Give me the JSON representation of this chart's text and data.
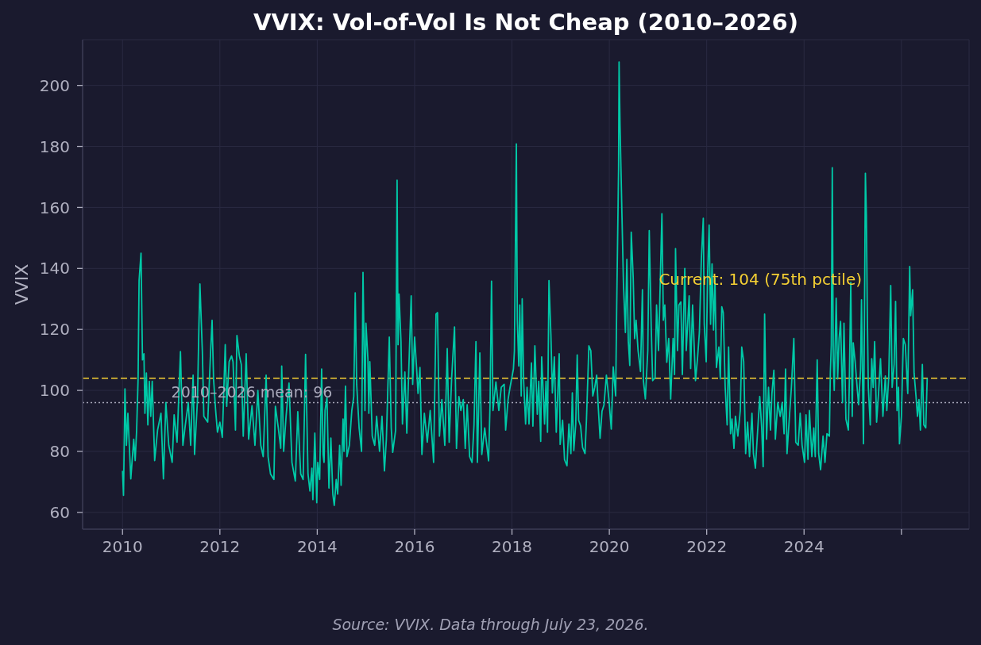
{
  "chart_data": {
    "type": "line",
    "title": "VVIX: Vol-of-Vol Is Not Cheap (2010–2026)",
    "ylabel": "VVIX",
    "x": [
      2010.0,
      2010.02,
      2010.05,
      2010.08,
      2010.11,
      2010.17,
      2010.23,
      2010.26,
      2010.29,
      2010.32,
      2010.34,
      2010.38,
      2010.41,
      2010.44,
      2010.46,
      2010.49,
      2010.52,
      2010.55,
      2010.58,
      2010.61,
      2010.66,
      2010.72,
      2010.79,
      2010.84,
      2010.89,
      2010.95,
      2011.02,
      2011.06,
      2011.12,
      2011.19,
      2011.24,
      2011.29,
      2011.35,
      2011.4,
      2011.45,
      2011.48,
      2011.54,
      2011.57,
      2011.59,
      2011.64,
      2011.67,
      2011.75,
      2011.81,
      2011.84,
      2011.87,
      2011.91,
      2011.95,
      2012.0,
      2012.05,
      2012.11,
      2012.14,
      2012.19,
      2012.24,
      2012.27,
      2012.32,
      2012.35,
      2012.4,
      2012.44,
      2012.48,
      2012.54,
      2012.59,
      2012.66,
      2012.72,
      2012.78,
      2012.84,
      2012.89,
      2012.95,
      2012.99,
      2013.04,
      2013.11,
      2013.14,
      2013.2,
      2013.25,
      2013.27,
      2013.31,
      2013.36,
      2013.42,
      2013.48,
      2013.55,
      2013.6,
      2013.66,
      2013.71,
      2013.76,
      2013.81,
      2013.85,
      2013.89,
      2013.91,
      2013.95,
      2013.99,
      2014.01,
      2014.05,
      2014.09,
      2014.12,
      2014.14,
      2014.16,
      2014.2,
      2014.24,
      2014.28,
      2014.32,
      2014.35,
      2014.39,
      2014.42,
      2014.46,
      2014.49,
      2014.53,
      2014.55,
      2014.58,
      2014.61,
      2014.66,
      2014.71,
      2014.75,
      2014.78,
      2014.81,
      2014.86,
      2014.91,
      2014.94,
      2014.98,
      2015.0,
      2015.04,
      2015.06,
      2015.08,
      2015.13,
      2015.18,
      2015.22,
      2015.28,
      2015.33,
      2015.38,
      2015.42,
      2015.48,
      2015.52,
      2015.55,
      2015.61,
      2015.64,
      2015.66,
      2015.68,
      2015.72,
      2015.75,
      2015.8,
      2015.84,
      2015.88,
      2015.93,
      2015.96,
      2016.0,
      2016.04,
      2016.07,
      2016.11,
      2016.15,
      2016.2,
      2016.26,
      2016.32,
      2016.39,
      2016.44,
      2016.47,
      2016.51,
      2016.56,
      2016.62,
      2016.67,
      2016.71,
      2016.76,
      2016.82,
      2016.86,
      2016.91,
      2016.95,
      2017.0,
      2017.04,
      2017.08,
      2017.13,
      2017.18,
      2017.22,
      2017.26,
      2017.29,
      2017.34,
      2017.38,
      2017.44,
      2017.52,
      2017.55,
      2017.58,
      2017.61,
      2017.67,
      2017.73,
      2017.78,
      2017.84,
      2017.87,
      2017.92,
      2017.96,
      2018.03,
      2018.05,
      2018.09,
      2018.11,
      2018.14,
      2018.16,
      2018.19,
      2018.21,
      2018.24,
      2018.28,
      2018.31,
      2018.35,
      2018.4,
      2018.43,
      2018.47,
      2018.52,
      2018.55,
      2018.59,
      2018.61,
      2018.67,
      2018.7,
      2018.73,
      2018.76,
      2018.8,
      2018.83,
      2018.87,
      2018.91,
      2018.94,
      2018.97,
      2018.99,
      2019.04,
      2019.08,
      2019.13,
      2019.17,
      2019.21,
      2019.24,
      2019.27,
      2019.31,
      2019.34,
      2019.37,
      2019.41,
      2019.45,
      2019.5,
      2019.53,
      2019.58,
      2019.62,
      2019.66,
      2019.7,
      2019.74,
      2019.77,
      2019.81,
      2019.85,
      2019.89,
      2019.94,
      2019.99,
      2020.04,
      2020.08,
      2020.13,
      2020.15,
      2020.19,
      2020.2,
      2020.22,
      2020.24,
      2020.26,
      2020.29,
      2020.33,
      2020.36,
      2020.39,
      2020.42,
      2020.45,
      2020.49,
      2020.52,
      2020.55,
      2020.59,
      2020.64,
      2020.68,
      2020.7,
      2020.74,
      2020.79,
      2020.82,
      2020.86,
      2020.89,
      2020.94,
      2020.97,
      2021.01,
      2021.03,
      2021.08,
      2021.11,
      2021.14,
      2021.18,
      2021.22,
      2021.26,
      2021.31,
      2021.34,
      2021.36,
      2021.4,
      2021.43,
      2021.47,
      2021.5,
      2021.55,
      2021.58,
      2021.64,
      2021.67,
      2021.71,
      2021.77,
      2021.81,
      2021.85,
      2021.89,
      2021.93,
      2021.95,
      2021.99,
      2022.02,
      2022.05,
      2022.08,
      2022.11,
      2022.14,
      2022.17,
      2022.2,
      2022.25,
      2022.28,
      2022.31,
      2022.34,
      2022.38,
      2022.42,
      2022.45,
      2022.49,
      2022.52,
      2022.56,
      2022.59,
      2022.64,
      2022.69,
      2022.72,
      2022.76,
      2022.8,
      2022.84,
      2022.88,
      2022.93,
      2022.96,
      2023.0,
      2023.04,
      2023.09,
      2023.13,
      2023.16,
      2023.19,
      2023.23,
      2023.27,
      2023.31,
      2023.34,
      2023.38,
      2023.41,
      2023.46,
      2023.51,
      2023.55,
      2023.59,
      2023.62,
      2023.65,
      2023.7,
      2023.74,
      2023.79,
      2023.83,
      2023.88,
      2023.92,
      2023.96,
      2024.01,
      2024.04,
      2024.08,
      2024.11,
      2024.16,
      2024.2,
      2024.23,
      2024.27,
      2024.3,
      2024.34,
      2024.39,
      2024.43,
      2024.47,
      2024.52,
      2024.54,
      2024.56,
      2024.58,
      2024.6,
      2024.62,
      2024.66,
      2024.69,
      2024.72,
      2024.75,
      2024.79,
      2024.82,
      2024.86,
      2024.91,
      2024.93,
      2024.96,
      2024.99,
      2025.01,
      2025.05,
      2025.09,
      2025.12,
      2025.16,
      2025.18,
      2025.22,
      2025.24,
      2025.26,
      2025.28,
      2025.3,
      2025.32,
      2025.36,
      2025.39,
      2025.42,
      2025.45,
      2025.49,
      2025.53,
      2025.57,
      2025.62,
      2025.67,
      2025.7,
      2025.74,
      2025.78,
      2025.81,
      2025.85,
      2025.88,
      2025.91,
      2025.94,
      2025.96,
      2026.0,
      2026.04,
      2026.08,
      2026.13,
      2026.17,
      2026.19,
      2026.23,
      2026.26,
      2026.3,
      2026.33,
      2026.36,
      2026.39,
      2026.43,
      2026.46,
      2026.5,
      2026.53
    ],
    "series": [
      {
        "color": "#00c9a7",
        "values": [
          73.6,
          65.6,
          100.5,
          82,
          92.5,
          71,
          84,
          77,
          87,
          104,
          136,
          145,
          110,
          112,
          92.5,
          105.7,
          88.7,
          103,
          91.5,
          103,
          77,
          87,
          92.5,
          71,
          96,
          82,
          76.4,
          92,
          83,
          112.7,
          82,
          88.7,
          96,
          82,
          105,
          79,
          97,
          121.7,
          134.9,
          112.7,
          91.5,
          89.6,
          113,
          123,
          103.8,
          94,
          86.3,
          89.6,
          84.6,
          115,
          94.8,
          109.4,
          111.3,
          109.4,
          87,
          118,
          111.3,
          108.5,
          85,
          112,
          84,
          95,
          82,
          100,
          82,
          78.3,
          105,
          78.3,
          72.6,
          70.8,
          94.8,
          87.7,
          81,
          108,
          80,
          91.5,
          102.4,
          76.4,
          70.3,
          93,
          72.6,
          70.8,
          111.8,
          72.6,
          67,
          74.5,
          64.2,
          86,
          63.2,
          76.4,
          70.8,
          107,
          79,
          76.4,
          93.4,
          97.6,
          68,
          84.4,
          66,
          62.3,
          70.8,
          66,
          82,
          68.9,
          90.6,
          80,
          101.4,
          78.3,
          82,
          93.4,
          98,
          132,
          102,
          87.7,
          80,
          138.7,
          93.4,
          122,
          110.4,
          92.5,
          109.4,
          85,
          82,
          91.5,
          80,
          91.5,
          73.6,
          84,
          117.5,
          87.7,
          79.7,
          87,
          168.9,
          115,
          131.6,
          116,
          89,
          106,
          86,
          106.6,
          131,
          102,
          117.5,
          107.5,
          99,
          107.5,
          79,
          92.5,
          83,
          93.4,
          76.4,
          125,
          125.5,
          85,
          97,
          82,
          113.7,
          83,
          103.8,
          120.8,
          81,
          98,
          93.4,
          97,
          81,
          95.3,
          78.3,
          76.4,
          88.7,
          116,
          76.4,
          112.3,
          79,
          87.7,
          76.9,
          96,
          135.8,
          93.4,
          102.8,
          93.4,
          101,
          102,
          87,
          97,
          101,
          107,
          113,
          180.8,
          123,
          108,
          128,
          98.2,
          130,
          103,
          89,
          101,
          89,
          109,
          88.3,
          114.6,
          92.2,
          103,
          83.3,
          111,
          89,
          103,
          86.3,
          136,
          118,
          99.2,
          111,
          86.3,
          98.2,
          112,
          82.3,
          90.2,
          77.3,
          75.3,
          89,
          79.3,
          99.2,
          80.3,
          89,
          111.6,
          90.2,
          88.3,
          81.3,
          79.3,
          90.2,
          114.6,
          113,
          98.2,
          101,
          105,
          95.2,
          84.3,
          93.2,
          95.2,
          105,
          97.2,
          87.3,
          107.7,
          98.2,
          126,
          172.8,
          207.7,
          186.8,
          171.8,
          156.9,
          135,
          119,
          143,
          116.1,
          108.2,
          151.9,
          137,
          117,
          123,
          113.1,
          106.2,
          133,
          103.2,
          97.2,
          113.1,
          152.4,
          121.1,
          103.2,
          104.2,
          128,
          113.1,
          125,
          157.9,
          123,
          128,
          109.2,
          117,
          97.2,
          117,
          105.2,
          146.5,
          113.1,
          128,
          129,
          105.2,
          140,
          113.1,
          131,
          107.2,
          128,
          103.2,
          110.2,
          119.1,
          143,
          156.4,
          121.7,
          109.4,
          138.7,
          154.2,
          121.7,
          141.5,
          119.8,
          136.8,
          107.5,
          114.2,
          103.8,
          127.4,
          125.5,
          101,
          88.7,
          114.2,
          85.8,
          90.6,
          81,
          91.5,
          85,
          93.4,
          114.2,
          109.4,
          79.3,
          89.6,
          78.3,
          92.5,
          79.3,
          74.5,
          85,
          98,
          87.7,
          75,
          125,
          84,
          101,
          87,
          99,
          106.6,
          84,
          96,
          91.5,
          96,
          85.8,
          107,
          79.3,
          91.5,
          101,
          117,
          83,
          82,
          92.5,
          82,
          76.4,
          92,
          77.4,
          93.4,
          78.3,
          87.7,
          78.3,
          110,
          79.3,
          74,
          85,
          76.4,
          85.8,
          85,
          105.7,
          115,
          173,
          110.4,
          100,
          130.2,
          103.8,
          117,
          122.6,
          96,
          122,
          90.6,
          87,
          102.8,
          135.4,
          91.5,
          115.6,
          109.4,
          101,
          95.3,
          106.6,
          129.7,
          82.5,
          121.7,
          171.2,
          157.5,
          124.5,
          101,
          88.7,
          110.4,
          101,
          116,
          89.6,
          99,
          110.4,
          91.5,
          104.7,
          93.4,
          104.7,
          134.4,
          101,
          108.5,
          129.2,
          93.4,
          101,
          82.5,
          91.5,
          117,
          115,
          99,
          140.6,
          124.5,
          133,
          105.7,
          98,
          91.5,
          97,
          87,
          108.5,
          88.7,
          87.7,
          104
        ]
      }
    ],
    "xlim": [
      2009.18,
      2027.39
    ],
    "xticks": [
      2010,
      2012,
      2014,
      2016,
      2018,
      2020,
      2022,
      2024,
      {
        "value": 2026,
        "label": null
      }
    ],
    "ylim": [
      54.5,
      215
    ],
    "yticks": [
      60,
      80,
      100,
      120,
      140,
      160,
      180,
      200
    ],
    "grid": true,
    "marker": "none",
    "ref_lines": [
      {
        "axis": "y",
        "value": 104,
        "label": "Current: 104 (75th pctile)",
        "color": "#f5d033",
        "line_style": "dashed"
      },
      {
        "axis": "y",
        "value": 96,
        "label": "2010–2026 mean: 96",
        "color": "#a9a9bb",
        "line_style": "dotted"
      }
    ],
    "annotations": [
      "Source: VVIX. Data through July 23, 2026."
    ]
  }
}
